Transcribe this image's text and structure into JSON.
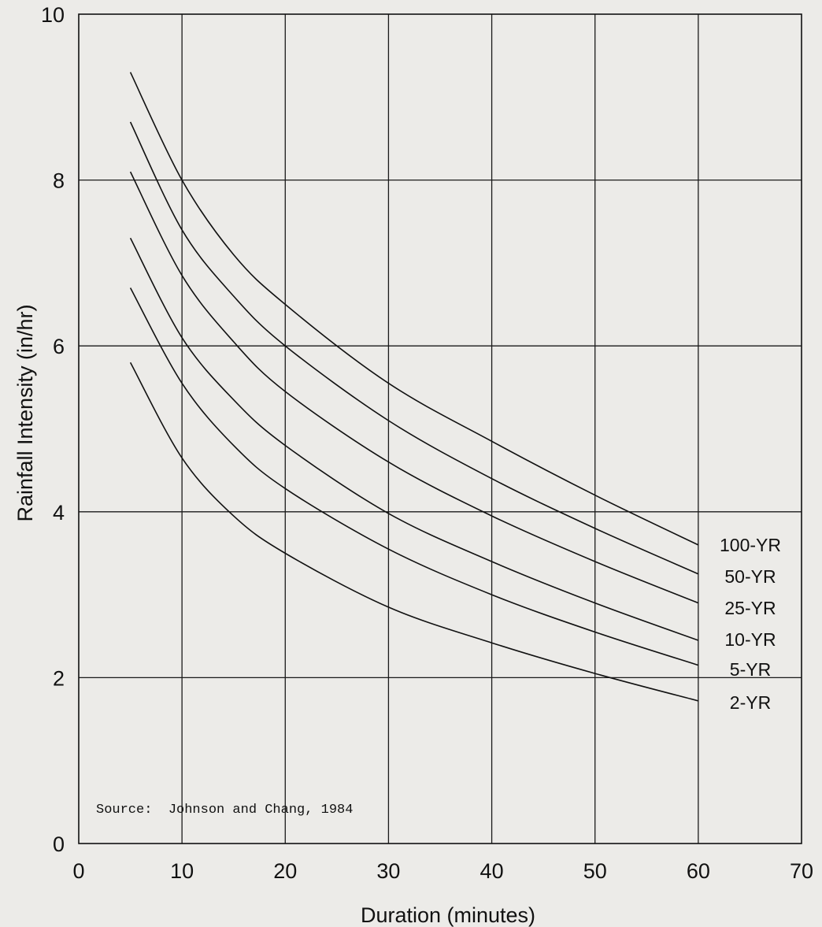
{
  "chart_data": {
    "type": "line",
    "title": "",
    "xlabel": "Duration (minutes)",
    "ylabel": "Rainfall Intensity (in/hr)",
    "xlim": [
      0,
      70
    ],
    "ylim": [
      0,
      10
    ],
    "xticks": [
      0,
      10,
      20,
      30,
      40,
      50,
      60,
      70
    ],
    "yticks": [
      0,
      2,
      4,
      6,
      8,
      10
    ],
    "grid": true,
    "legend": "none",
    "annotation": "Source:  Johnson and Chang, 1984",
    "x": [
      5,
      10,
      15,
      20,
      30,
      40,
      50,
      60
    ],
    "series": [
      {
        "name": "100-YR",
        "values": [
          9.3,
          8.0,
          7.1,
          6.5,
          5.55,
          4.85,
          4.2,
          3.6
        ]
      },
      {
        "name": "50-YR",
        "values": [
          8.7,
          7.4,
          6.6,
          6.0,
          5.1,
          4.4,
          3.8,
          3.25
        ]
      },
      {
        "name": "25-YR",
        "values": [
          8.1,
          6.85,
          6.05,
          5.45,
          4.6,
          3.95,
          3.4,
          2.9
        ]
      },
      {
        "name": "10-YR",
        "values": [
          7.3,
          6.1,
          5.35,
          4.8,
          3.98,
          3.4,
          2.9,
          2.45
        ]
      },
      {
        "name": "5-YR",
        "values": [
          6.7,
          5.55,
          4.8,
          4.28,
          3.55,
          3.0,
          2.55,
          2.15
        ]
      },
      {
        "name": "2-YR",
        "values": [
          5.8,
          4.65,
          3.95,
          3.5,
          2.85,
          2.42,
          2.05,
          1.72
        ]
      }
    ]
  }
}
